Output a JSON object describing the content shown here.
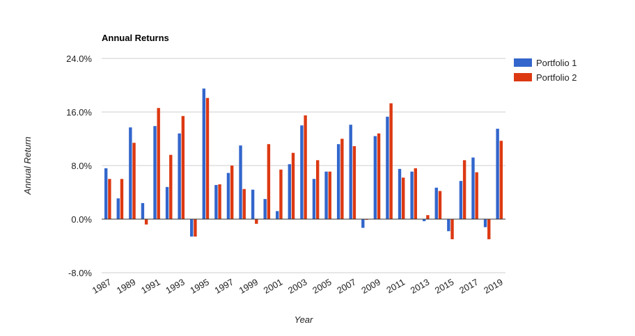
{
  "chart_data": {
    "type": "bar",
    "title": "Annual Returns",
    "xlabel": "Year",
    "ylabel": "Annual Return",
    "ylim": [
      -8,
      24
    ],
    "yticks": [
      "24.0%",
      "16.0%",
      "8.0%",
      "0.0%",
      "-8.0%"
    ],
    "ytick_values": [
      24,
      16,
      8,
      0,
      -8
    ],
    "grid": true,
    "legend_position": "right",
    "categories": [
      "1987",
      "1988",
      "1989",
      "1990",
      "1991",
      "1992",
      "1993",
      "1994",
      "1995",
      "1996",
      "1997",
      "1998",
      "1999",
      "2000",
      "2001",
      "2002",
      "2003",
      "2004",
      "2005",
      "2006",
      "2007",
      "2008",
      "2009",
      "2010",
      "2011",
      "2012",
      "2013",
      "2014",
      "2015",
      "2016",
      "2017",
      "2018",
      "2019"
    ],
    "xtick_labels": [
      "1987",
      "1989",
      "1991",
      "1993",
      "1995",
      "1997",
      "1999",
      "2001",
      "2003",
      "2005",
      "2007",
      "2009",
      "2011",
      "2013",
      "2015",
      "2017",
      "2019"
    ],
    "series": [
      {
        "name": "Portfolio 1",
        "color": "#3366cc",
        "values": [
          7.6,
          3.1,
          13.7,
          2.4,
          13.9,
          4.8,
          12.8,
          -2.6,
          19.5,
          5.1,
          6.9,
          11.0,
          4.4,
          3.0,
          1.2,
          8.2,
          14.0,
          6.0,
          7.1,
          11.2,
          14.1,
          -1.3,
          12.4,
          15.3,
          7.5,
          7.1,
          -0.3,
          4.7,
          -1.8,
          5.7,
          9.2,
          -1.2,
          13.5
        ]
      },
      {
        "name": "Portfolio 2",
        "color": "#dc3912",
        "values": [
          6.0,
          6.0,
          11.4,
          -0.8,
          16.6,
          9.6,
          15.4,
          -2.6,
          18.1,
          5.2,
          8.0,
          4.5,
          -0.7,
          11.2,
          7.4,
          9.9,
          15.5,
          8.8,
          7.1,
          12.0,
          10.9,
          -0.1,
          12.8,
          17.3,
          6.2,
          7.6,
          0.6,
          4.2,
          -3.0,
          8.8,
          7.0,
          -3.0,
          11.7
        ]
      }
    ]
  }
}
